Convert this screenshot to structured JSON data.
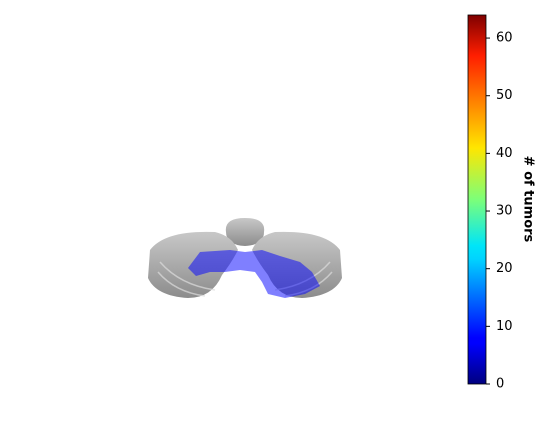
{
  "chart_data": {
    "type": "image",
    "colormap": "jet",
    "overlay_value": 8,
    "colorbar_label": "# of tumors",
    "ylim": [
      0,
      64
    ],
    "yticks": [
      0,
      10,
      20,
      30,
      40,
      50,
      60
    ]
  }
}
